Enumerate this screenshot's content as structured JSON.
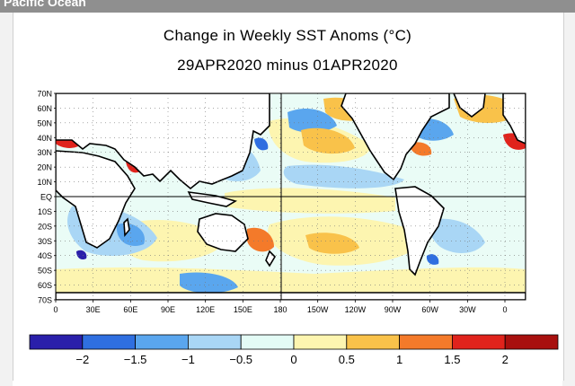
{
  "header": {
    "cropped_title": "Pacific Ocean"
  },
  "map": {
    "title_line1": "Change in Weekly SST Anoms (°C)",
    "title_line2": "29APR2020 minus 01APR2020",
    "lat_labels": [
      "70N",
      "60N",
      "50N",
      "40N",
      "30N",
      "20N",
      "10N",
      "EQ",
      "10S",
      "20S",
      "30S",
      "40S",
      "50S",
      "60S",
      "70S"
    ],
    "lon_labels": [
      "0",
      "30E",
      "60E",
      "90E",
      "120E",
      "150E",
      "180",
      "150W",
      "120W",
      "90W",
      "60W",
      "30W",
      "0"
    ],
    "colors": {
      "ocean_neutral": "#eafcf6",
      "land": "#ffffff",
      "coast": "#000000"
    }
  },
  "colorbar": {
    "tick_labels": [
      "−2",
      "−1.5",
      "−1",
      "−0.5",
      "0",
      "0.5",
      "1",
      "1.5",
      "2"
    ],
    "bins": [
      "#2a1faa",
      "#2f6fe0",
      "#5aa6ee",
      "#a9d6f5",
      "#e3fbf5",
      "#fdf5b0",
      "#f9c24a",
      "#f47a2a",
      "#e0231c",
      "#a8100e"
    ]
  }
}
